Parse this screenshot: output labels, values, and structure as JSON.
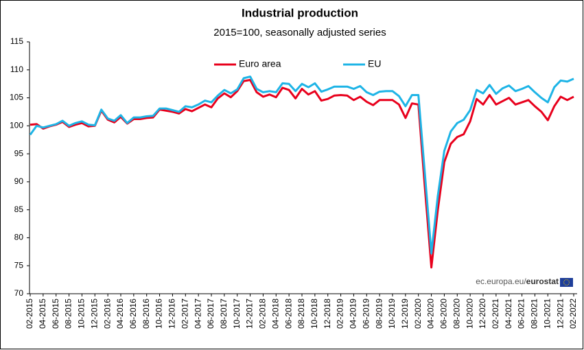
{
  "chart_data": {
    "type": "line",
    "title": "Industrial production",
    "subtitle": "2015=100, seasonally adjusted series",
    "source": "ec.europa.eu/",
    "source_brand": "eurostat",
    "categories": [
      "02-2015",
      null,
      "04-2015",
      null,
      "06-2015",
      null,
      "08-2015",
      null,
      "10-2015",
      null,
      "12-2015",
      null,
      "02-2016",
      null,
      "04-2016",
      null,
      "06-2016",
      null,
      "08-2016",
      null,
      "10-2016",
      null,
      "12-2016",
      null,
      "02-2017",
      null,
      "04-2017",
      null,
      "06-2017",
      null,
      "08-2017",
      null,
      "10-2017",
      null,
      "12-2017",
      null,
      "02-2018",
      null,
      "04-2018",
      null,
      "06-2018",
      null,
      "08-2018",
      null,
      "10-2018",
      null,
      "12-2018",
      null,
      "02-2019",
      null,
      "04-2019",
      null,
      "06-2019",
      null,
      "08-2019",
      null,
      "10-2019",
      null,
      "12-2019",
      null,
      "02-2020",
      null,
      "04-2020",
      null,
      "06-2020",
      null,
      "08-2020",
      null,
      "10-2020",
      null,
      "12-2020",
      null,
      "02-2021",
      null,
      "04-2021",
      null,
      "06-2021",
      null,
      "08-2021",
      null,
      "10-2021",
      null,
      "12-2021",
      null,
      "02-2022"
    ],
    "series": [
      {
        "name": "Euro area",
        "color": "#e8001c",
        "values": [
          100.2,
          100.3,
          99.5,
          99.9,
          100.2,
          100.7,
          99.8,
          100.2,
          100.5,
          99.9,
          100.0,
          102.7,
          101.1,
          100.6,
          101.6,
          100.4,
          101.2,
          101.2,
          101.4,
          101.5,
          102.9,
          102.7,
          102.5,
          102.2,
          103.0,
          102.6,
          103.2,
          103.8,
          103.3,
          104.9,
          105.8,
          105.1,
          106.2,
          108.0,
          108.2,
          106.0,
          105.2,
          105.6,
          105.1,
          106.8,
          106.4,
          104.9,
          106.6,
          105.6,
          106.2,
          104.5,
          104.8,
          105.4,
          105.5,
          105.4,
          104.6,
          105.2,
          104.3,
          103.7,
          104.6,
          104.6,
          104.6,
          103.8,
          101.4,
          104.0,
          103.8,
          89.0,
          74.7,
          85.0,
          93.5,
          96.8,
          98.0,
          98.5,
          100.8,
          104.8,
          103.8,
          105.5,
          103.8,
          104.4,
          105.0,
          103.8,
          104.2,
          104.6,
          103.5,
          102.5,
          101.0,
          103.5,
          105.2,
          104.6,
          105.2
        ]
      },
      {
        "name": "EU",
        "color": "#1eb4e6",
        "values": [
          98.4,
          100.0,
          99.7,
          100.0,
          100.3,
          100.9,
          100.0,
          100.5,
          100.8,
          100.2,
          100.1,
          102.9,
          101.3,
          100.9,
          101.9,
          100.5,
          101.5,
          101.5,
          101.7,
          101.8,
          103.1,
          103.1,
          102.8,
          102.5,
          103.5,
          103.3,
          103.8,
          104.5,
          104.2,
          105.4,
          106.4,
          105.8,
          106.5,
          108.5,
          108.8,
          106.6,
          106.0,
          106.2,
          106.0,
          107.6,
          107.5,
          106.2,
          107.5,
          106.9,
          107.6,
          106.1,
          106.5,
          107.0,
          107.0,
          107.0,
          106.6,
          107.1,
          106.0,
          105.5,
          106.1,
          106.2,
          106.2,
          105.3,
          103.5,
          105.5,
          105.5,
          91.5,
          77.2,
          87.5,
          95.5,
          99.0,
          100.5,
          101.1,
          102.8,
          106.4,
          105.8,
          107.3,
          105.7,
          106.7,
          107.2,
          106.2,
          106.6,
          107.1,
          106.0,
          105.0,
          104.2,
          106.9,
          108.1,
          107.9,
          108.4
        ]
      }
    ],
    "ylim": [
      70,
      115
    ],
    "yticks": [
      70,
      75,
      80,
      85,
      90,
      95,
      100,
      105,
      110,
      115
    ],
    "grid": false,
    "legend": "top"
  }
}
